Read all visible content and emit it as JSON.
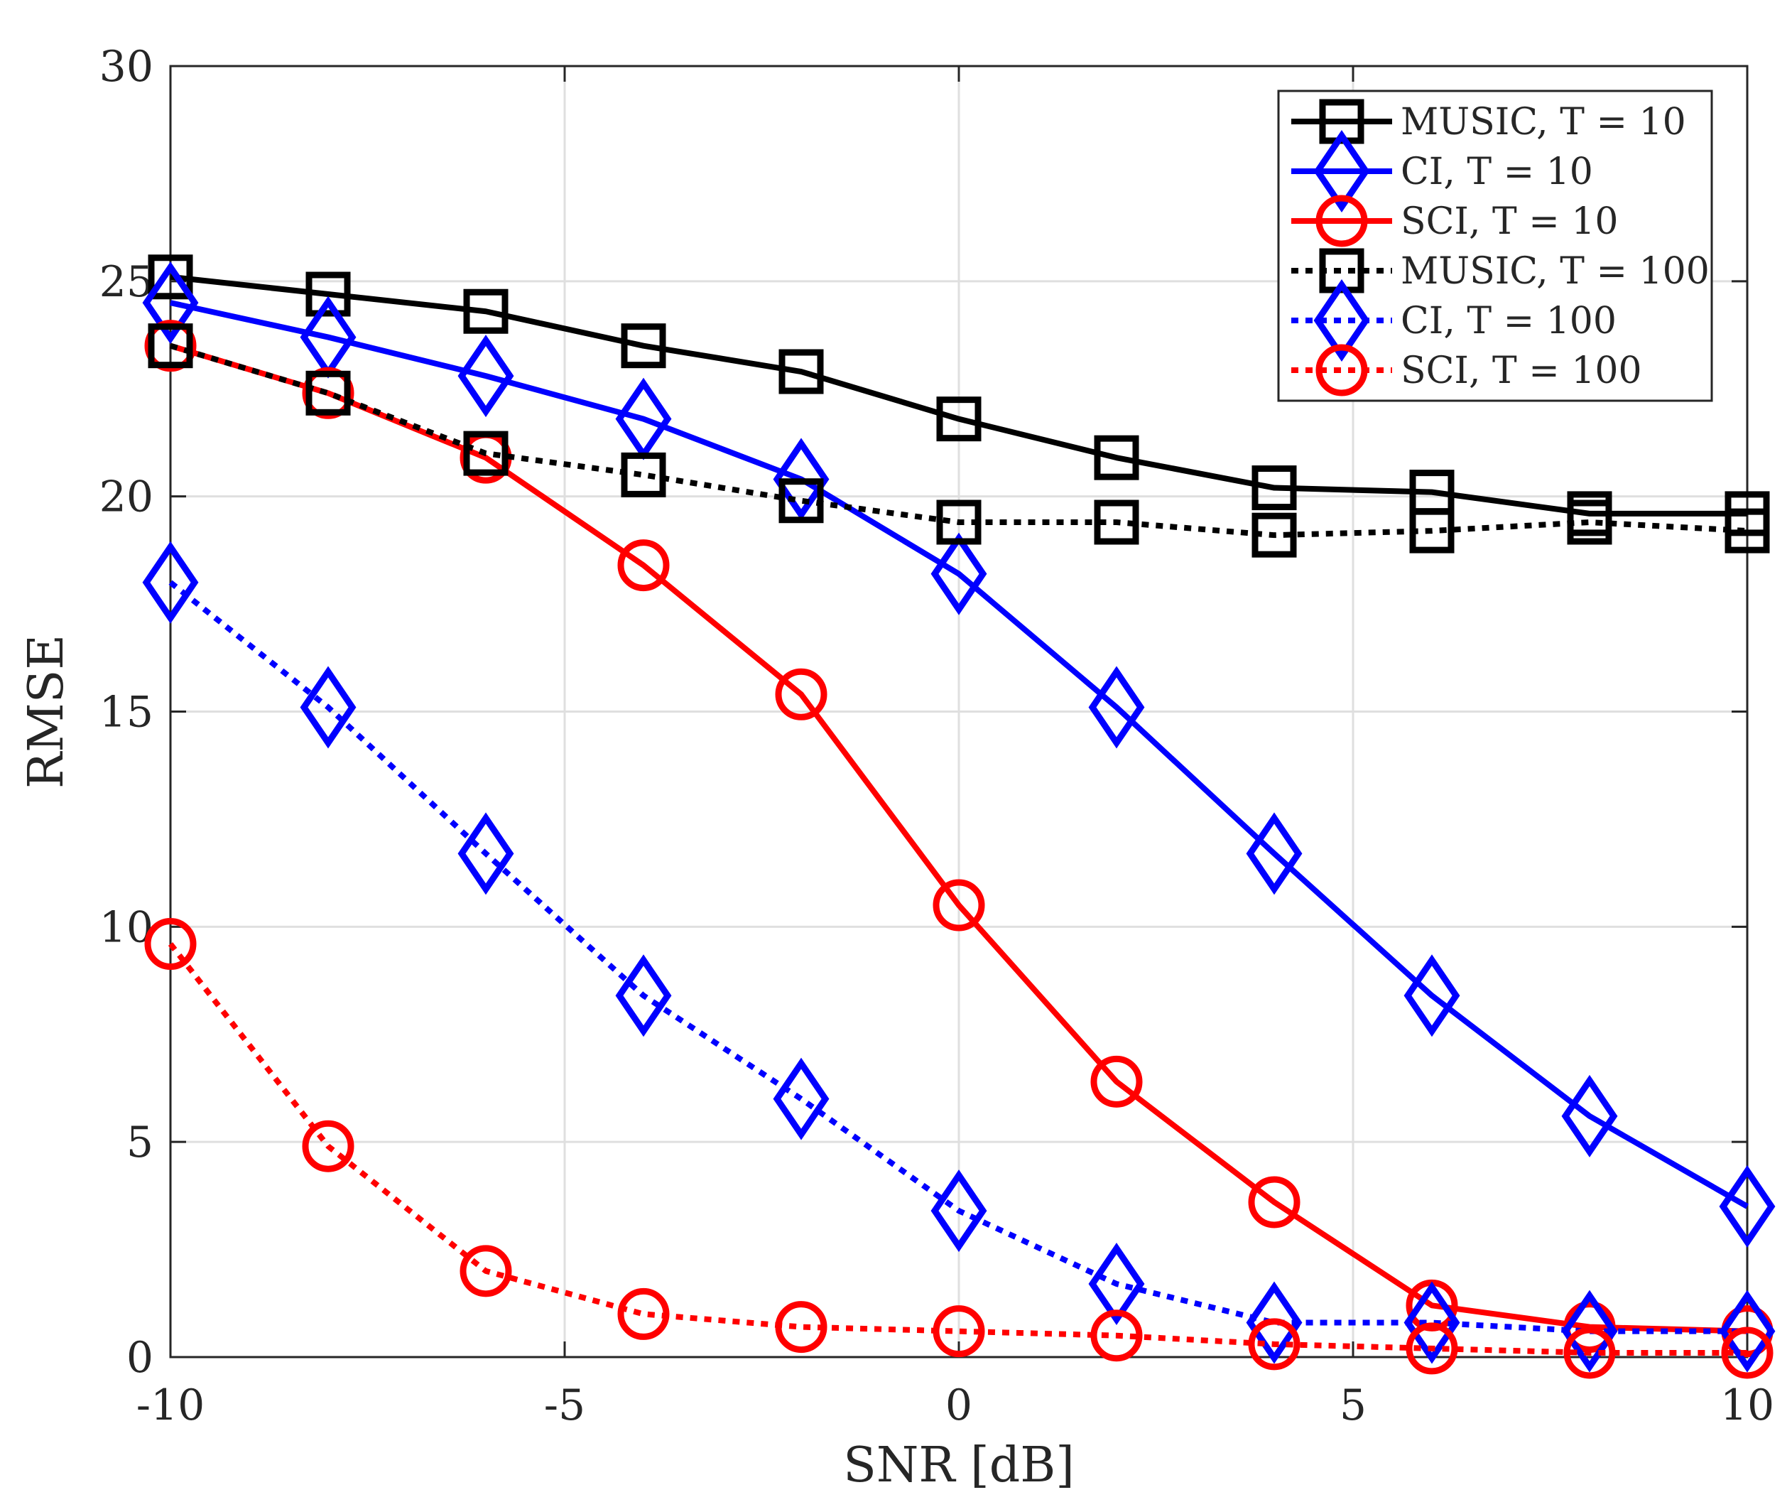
{
  "chart_data": {
    "type": "line",
    "title": "",
    "xlabel": "SNR [dB]",
    "ylabel": "RMSE",
    "xlim": [
      -10,
      10
    ],
    "ylim": [
      0,
      30
    ],
    "grid": true,
    "legend_position": "top-right",
    "x": [
      -10,
      -8,
      -6,
      -4,
      -2,
      0,
      2,
      4,
      6,
      8,
      10
    ],
    "xticks": [
      -10,
      -5,
      0,
      5,
      10
    ],
    "xtick_labels": [
      "-10",
      "-5",
      "0",
      "5",
      "10"
    ],
    "yticks": [
      0,
      5,
      10,
      15,
      20,
      25,
      30
    ],
    "ytick_labels": [
      "0",
      "5",
      "10",
      "15",
      "20",
      "25",
      "30"
    ],
    "series": [
      {
        "name": "MUSIC, T = 10",
        "color": "#000000",
        "style": "solid",
        "marker": "square",
        "values": [
          25.1,
          24.7,
          24.3,
          23.5,
          22.9,
          21.8,
          20.9,
          20.2,
          20.1,
          19.6,
          19.6
        ]
      },
      {
        "name": "CI, T = 10",
        "color": "#0000ff",
        "style": "solid",
        "marker": "diamond",
        "values": [
          24.5,
          23.7,
          22.8,
          21.8,
          20.4,
          18.2,
          15.1,
          11.7,
          8.4,
          5.6,
          3.5
        ]
      },
      {
        "name": "SCI, T = 10",
        "color": "#ff0000",
        "style": "solid",
        "marker": "circle",
        "values": [
          23.5,
          22.4,
          20.9,
          18.4,
          15.4,
          10.5,
          6.4,
          3.6,
          1.2,
          0.7,
          0.6
        ]
      },
      {
        "name": "MUSIC, T = 100",
        "color": "#000000",
        "style": "dotted",
        "marker": "square",
        "values": [
          23.5,
          22.4,
          21.0,
          20.5,
          19.9,
          19.4,
          19.4,
          19.1,
          19.2,
          19.4,
          19.2
        ]
      },
      {
        "name": "CI, T = 100",
        "color": "#0000ff",
        "style": "dotted",
        "marker": "diamond",
        "values": [
          18.0,
          15.1,
          11.7,
          8.4,
          6.0,
          3.4,
          1.7,
          0.8,
          0.8,
          0.6,
          0.6
        ]
      },
      {
        "name": "SCI, T = 100",
        "color": "#ff0000",
        "style": "dotted",
        "marker": "circle",
        "values": [
          9.6,
          4.9,
          2.0,
          1.0,
          0.7,
          0.6,
          0.5,
          0.3,
          0.2,
          0.1,
          0.1
        ]
      }
    ]
  }
}
